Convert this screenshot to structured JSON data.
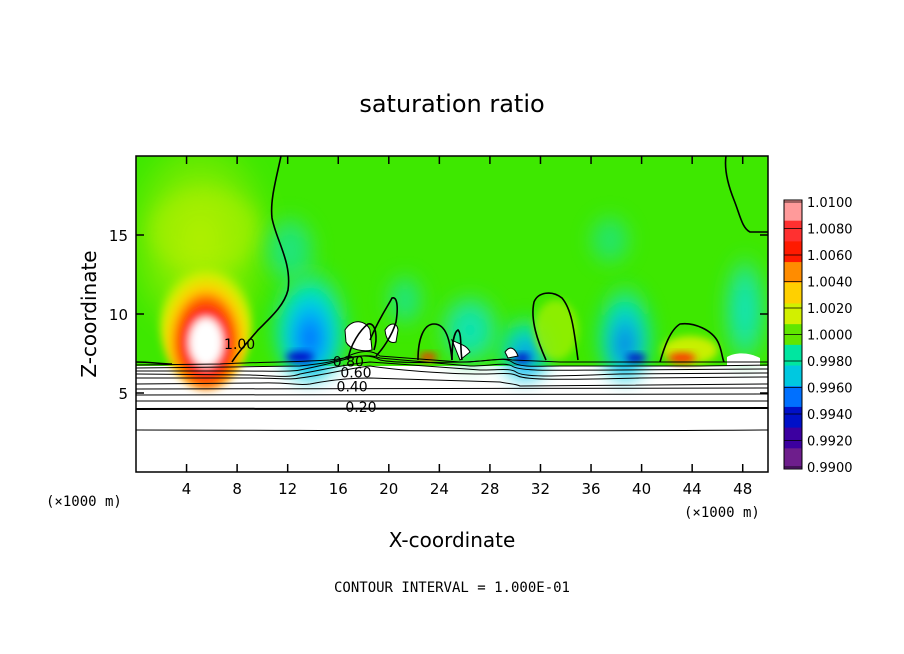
{
  "chart_data": {
    "type": "heatmap",
    "title": "saturation ratio",
    "xlabel": "X-coordinate",
    "ylabel": "Z-coordinate",
    "x_unit": "(×1000 m)",
    "y_unit": "(×1000 m)",
    "xlim": [
      0,
      50
    ],
    "ylim": [
      0,
      20
    ],
    "x_ticks": [
      4,
      8,
      12,
      16,
      20,
      24,
      28,
      32,
      36,
      40,
      44,
      48
    ],
    "y_ticks": [
      5,
      10,
      15
    ],
    "colorbar": {
      "levels": [
        "1.0100",
        "1.0080",
        "1.0060",
        "1.0040",
        "1.0020",
        "1.0000",
        "0.9980",
        "0.9960",
        "0.9940",
        "0.9920",
        "0.9900"
      ],
      "colors": [
        "#ff9a9a",
        "#ff3030",
        "#ff1a00",
        "#ff8c00",
        "#ffd000",
        "#d2f000",
        "#60e600",
        "#00e6a0",
        "#00c8e0",
        "#0070ff",
        "#0010c8",
        "#3c00a0",
        "#6e1e8c"
      ]
    },
    "contour_labels": [
      {
        "text": "1.00",
        "x": 8.2,
        "z": 8.1
      },
      {
        "text": "0.80",
        "x": 16.8,
        "z": 7.0
      },
      {
        "text": "0.60",
        "x": 17.4,
        "z": 6.3
      },
      {
        "text": "0.40",
        "x": 17.1,
        "z": 5.4
      },
      {
        "text": "0.20",
        "x": 17.8,
        "z": 4.1
      }
    ],
    "annotation": "CONTOUR INTERVAL = 1.000E-01"
  }
}
